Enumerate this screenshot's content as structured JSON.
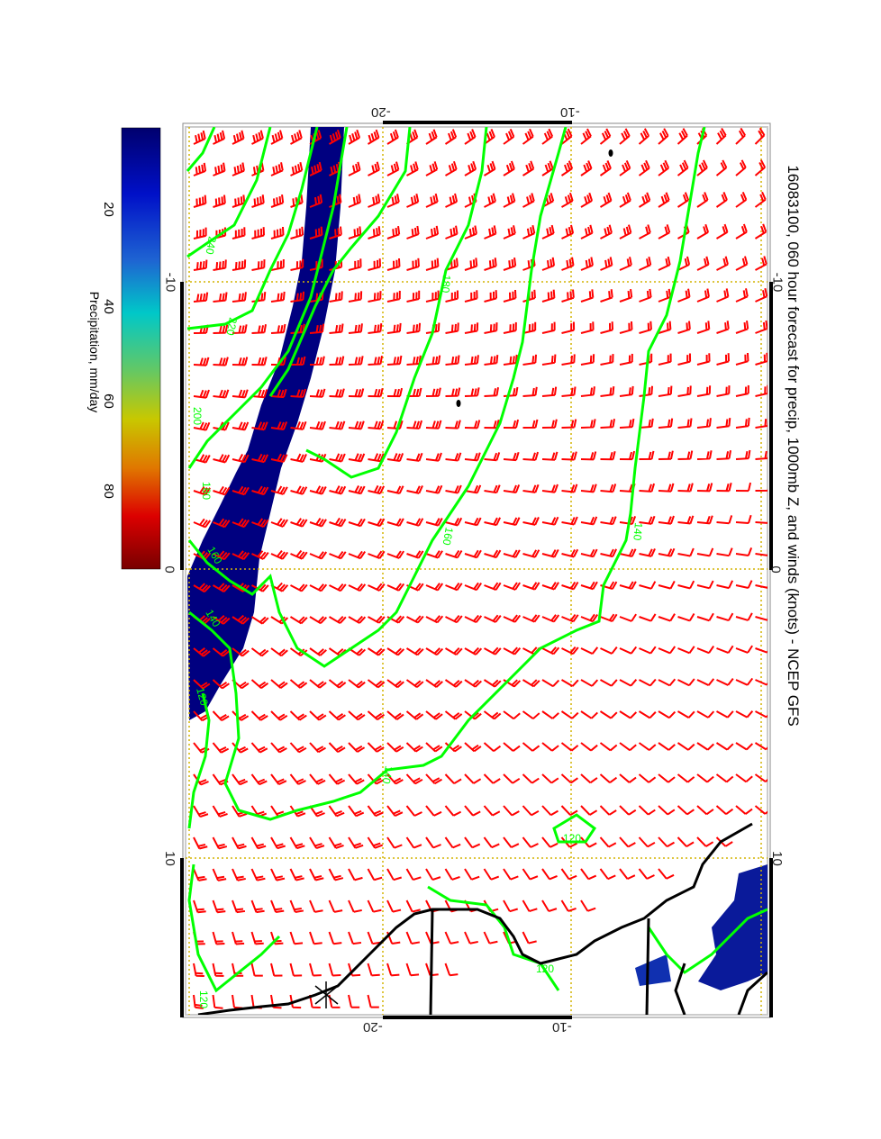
{
  "title": "16083100, 060 hour forecast for precip, 1000mb Z, and winds (knots) - NCEP GFS",
  "colorbar": {
    "label": "Precipitation, mm/day",
    "ticks": [
      "20",
      "40",
      "60",
      "80"
    ],
    "colors": [
      "#00006e",
      "#0010c8",
      "#1e64d2",
      "#00c8c8",
      "#64c864",
      "#c8c800",
      "#e07800",
      "#dc0000",
      "#780000"
    ]
  },
  "axes": {
    "lon_ticks_top": [
      "-20",
      "-10"
    ],
    "lon_ticks_bottom": [
      "-20",
      "-10"
    ],
    "lat_ticks_right": [
      "-10",
      "0",
      "10"
    ],
    "lat_ticks_left": [
      "-10",
      "0",
      "10"
    ]
  },
  "contour_labels": [
    "240",
    "220",
    "200",
    "180",
    "160",
    "140",
    "120",
    "160",
    "140",
    "120",
    "120",
    "140",
    "180",
    "120"
  ],
  "colors": {
    "contour": "#00ff00",
    "barb": "#ff0000",
    "precip": "#000080",
    "coast": "#000000",
    "grid": "#d4b400"
  },
  "chart_data": {
    "type": "map",
    "title": "16083100, 060 hour forecast for precip, 1000mb Z, and winds (knots) - NCEP GFS",
    "layers": [
      "precipitation (mm/day, filled)",
      "1000mb geopotential height (contours)",
      "wind barbs (knots)"
    ],
    "contour_levels": [
      120,
      140,
      160,
      180,
      200,
      220,
      240
    ],
    "colorbar_range": [
      0,
      100
    ]
  }
}
